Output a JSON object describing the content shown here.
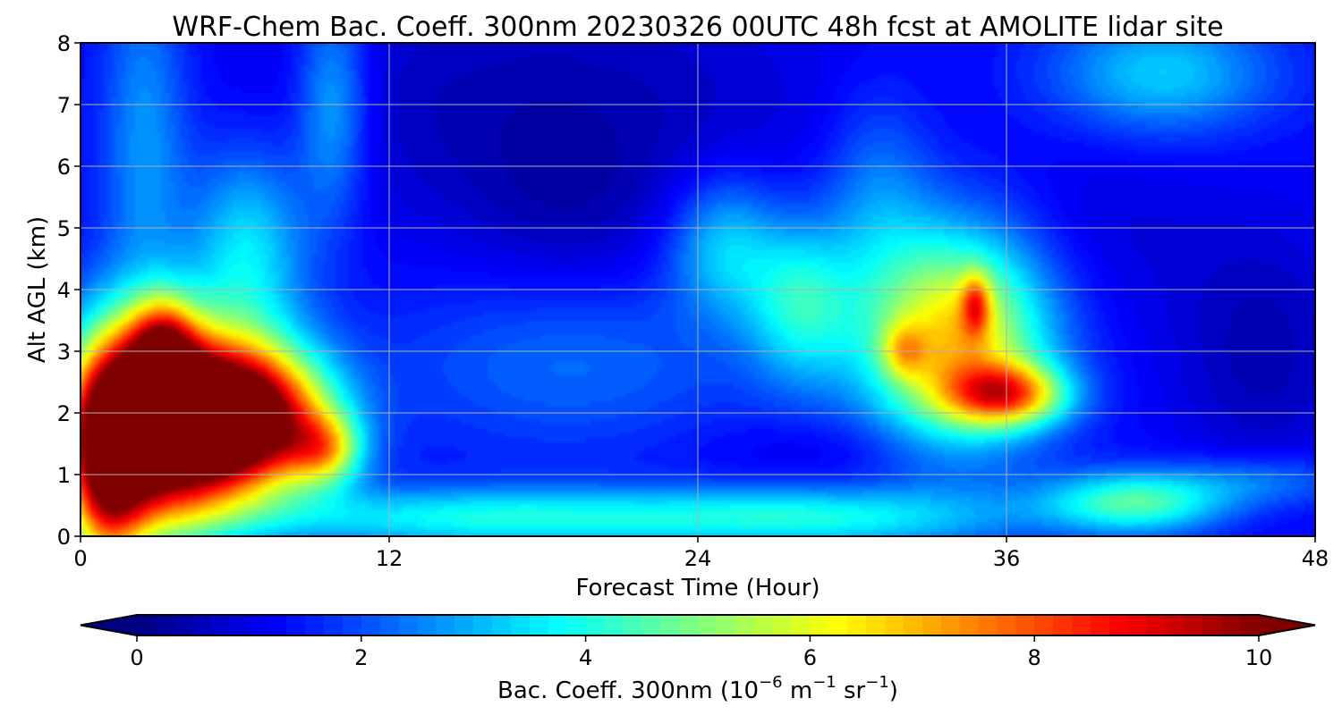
{
  "chart_data": {
    "type": "heatmap",
    "title": "WRF-Chem Bac. Coeff. 300nm  20230326 00UTC 48h fcst at AMOLITE lidar site",
    "xlabel": "Forecast Time (Hour)",
    "ylabel": "Alt AGL (km)",
    "xlim": [
      0,
      48
    ],
    "ylim": [
      0,
      8
    ],
    "xticks": [
      "0",
      "12",
      "24",
      "36",
      "48"
    ],
    "xtick_values": [
      0,
      12,
      24,
      36,
      48
    ],
    "yticks": [
      "0",
      "1",
      "2",
      "3",
      "4",
      "5",
      "6",
      "7",
      "8"
    ],
    "ytick_values": [
      0,
      1,
      2,
      3,
      4,
      5,
      6,
      7,
      8
    ],
    "grid": true,
    "colormap": "jet",
    "colorbar": {
      "orientation": "horizontal",
      "label_main": "Bac. Coeff. 300nm  (10",
      "label_exp1": "−6",
      "label_mid": " m",
      "label_exp2": "−1",
      "label_mid2": " sr",
      "label_exp3": "−1",
      "label_end": ")",
      "range": [
        0,
        10
      ],
      "ticks": [
        "0",
        "2",
        "4",
        "6",
        "8",
        "10"
      ],
      "tick_values": [
        0,
        2,
        4,
        6,
        8,
        10
      ],
      "extend": "both"
    },
    "background_value": 1.3,
    "features": [
      {
        "x": 3.0,
        "y": 1.8,
        "sx": 2.2,
        "sy": 1.1,
        "v": 10.5
      },
      {
        "x": 1.0,
        "y": 1.2,
        "sx": 1.1,
        "sy": 1.3,
        "v": 6.0
      },
      {
        "x": 3.2,
        "y": 3.0,
        "sx": 0.9,
        "sy": 0.6,
        "v": 4.5
      },
      {
        "x": 6.5,
        "y": 1.9,
        "sx": 2.2,
        "sy": 0.8,
        "v": 9.5
      },
      {
        "x": 9.5,
        "y": 1.4,
        "sx": 1.0,
        "sy": 0.4,
        "v": 3.5
      },
      {
        "x": 2.5,
        "y": 6.5,
        "sx": 1.2,
        "sy": 2.0,
        "v": 1.5
      },
      {
        "x": 6.5,
        "y": 4.6,
        "sx": 1.6,
        "sy": 1.2,
        "v": 2.3
      },
      {
        "x": 9.8,
        "y": 7.0,
        "sx": 1.0,
        "sy": 1.3,
        "v": 1.8
      },
      {
        "x": 16.0,
        "y": 0.3,
        "sx": 7.0,
        "sy": 0.35,
        "v": 2.6
      },
      {
        "x": 29.0,
        "y": 0.3,
        "sx": 5.0,
        "sy": 0.35,
        "v": 2.2
      },
      {
        "x": 41.0,
        "y": 0.55,
        "sx": 2.5,
        "sy": 0.35,
        "v": 3.2
      },
      {
        "x": 46.0,
        "y": 0.9,
        "sx": 2.5,
        "sy": 0.3,
        "v": 1.2
      },
      {
        "x": 34.0,
        "y": 3.2,
        "sx": 2.5,
        "sy": 1.2,
        "v": 5.5
      },
      {
        "x": 36.0,
        "y": 2.3,
        "sx": 1.6,
        "sy": 0.35,
        "v": 5.0
      },
      {
        "x": 34.8,
        "y": 3.75,
        "sx": 0.4,
        "sy": 0.35,
        "v": 3.0
      },
      {
        "x": 32.0,
        "y": 3.0,
        "sx": 0.6,
        "sy": 0.3,
        "v": 2.0
      },
      {
        "x": 28.0,
        "y": 3.8,
        "sx": 1.5,
        "sy": 0.9,
        "v": 2.5
      },
      {
        "x": 25.0,
        "y": 4.7,
        "sx": 1.5,
        "sy": 0.8,
        "v": 2.0
      },
      {
        "x": 31.0,
        "y": 5.5,
        "sx": 1.5,
        "sy": 1.2,
        "v": 1.2
      },
      {
        "x": 19.0,
        "y": 2.8,
        "sx": 5.0,
        "sy": 1.0,
        "v": 1.0
      },
      {
        "x": 42.0,
        "y": 7.5,
        "sx": 3.0,
        "sy": 0.7,
        "v": 2.0
      },
      {
        "x": 18.0,
        "y": 7.0,
        "sx": 8.0,
        "sy": 1.5,
        "v": -0.8
      },
      {
        "x": 46.0,
        "y": 3.0,
        "sx": 2.5,
        "sy": 1.5,
        "v": -0.8
      },
      {
        "x": 19.0,
        "y": 5.2,
        "sx": 3.0,
        "sy": 1.0,
        "v": -0.5
      },
      {
        "x": 40.0,
        "y": 5.0,
        "sx": 3.0,
        "sy": 1.2,
        "v": -0.4
      },
      {
        "x": 30.0,
        "y": 1.4,
        "sx": 4.0,
        "sy": 0.4,
        "v": -0.4
      }
    ]
  }
}
